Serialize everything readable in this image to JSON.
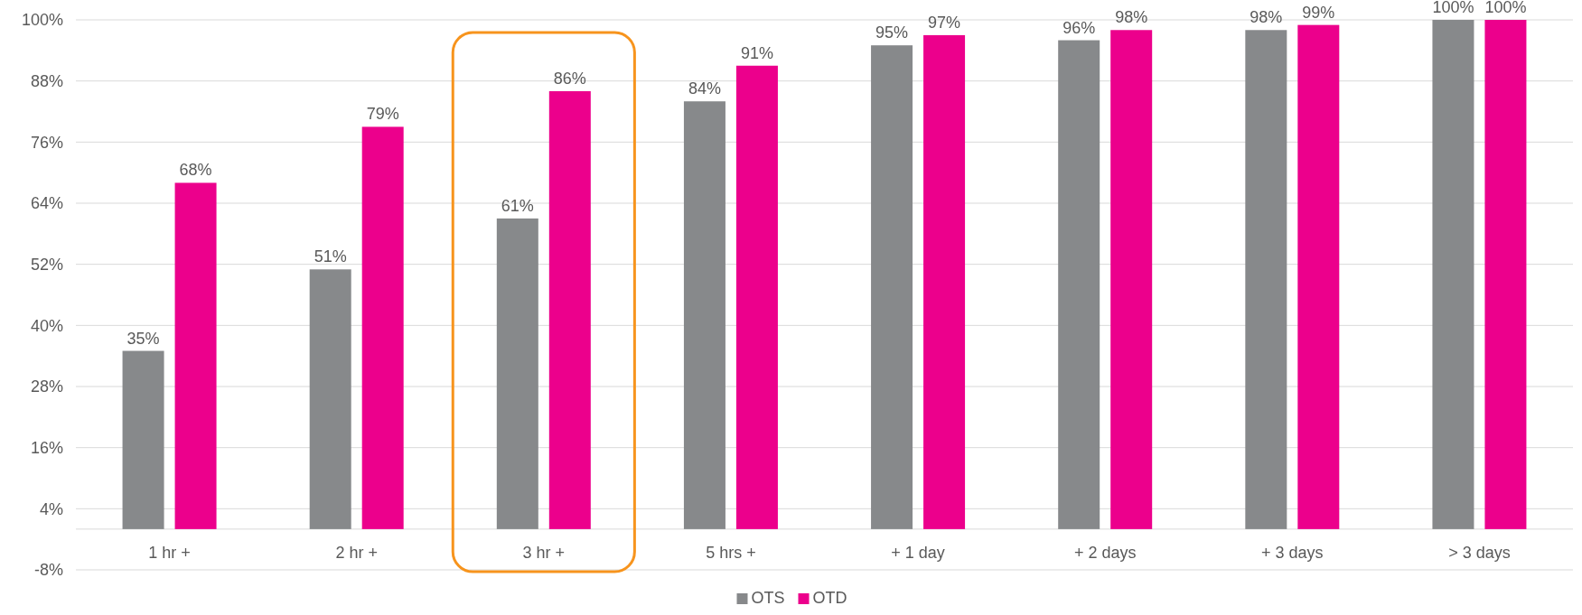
{
  "chart_data": {
    "type": "bar",
    "categories": [
      "1 hr +",
      "2 hr +",
      "3 hr +",
      "5 hrs +",
      "+ 1 day",
      "+ 2 days",
      "+ 3 days",
      "> 3 days"
    ],
    "series": [
      {
        "name": "OTS",
        "color": "#87898b",
        "values": [
          35,
          51,
          61,
          84,
          95,
          96,
          98,
          100
        ],
        "value_labels": [
          "35%",
          "51%",
          "61%",
          "84%",
          "95%",
          "96%",
          "98%",
          "100%"
        ]
      },
      {
        "name": "OTD",
        "color": "#ec008c",
        "values": [
          68,
          79,
          86,
          91,
          97,
          98,
          99,
          100
        ],
        "value_labels": [
          "68%",
          "79%",
          "86%",
          "91%",
          "97%",
          "98%",
          "99%",
          "100%"
        ]
      }
    ],
    "ylim": [
      -8,
      100
    ],
    "yticks": [
      {
        "value": -8,
        "label": "-8%"
      },
      {
        "value": 4,
        "label": "4%"
      },
      {
        "value": 16,
        "label": "16%"
      },
      {
        "value": 28,
        "label": "28%"
      },
      {
        "value": 40,
        "label": "40%"
      },
      {
        "value": 52,
        "label": "52%"
      },
      {
        "value": 64,
        "label": "64%"
      },
      {
        "value": 76,
        "label": "76%"
      },
      {
        "value": 88,
        "label": "88%"
      },
      {
        "value": 100,
        "label": "100%"
      }
    ],
    "grid": "y",
    "legend": "bottom"
  }
}
